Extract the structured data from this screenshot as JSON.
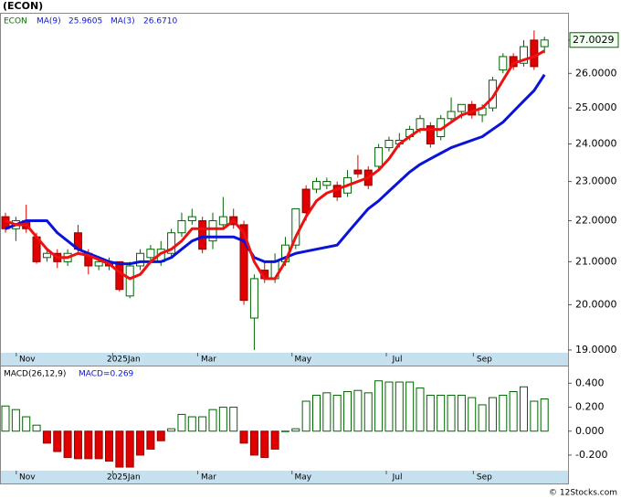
{
  "chart_data": [
    {
      "type": "candlestick",
      "title": "(ECON)",
      "symbol": "ECON",
      "log_scale": true,
      "categories": [
        null,
        null,
        null,
        null,
        null,
        null,
        null,
        null,
        null,
        null,
        null,
        null,
        null,
        null,
        null,
        null,
        null,
        null,
        null,
        null,
        null,
        null,
        null,
        null,
        null,
        null,
        null,
        null,
        null,
        null,
        null,
        null,
        null,
        null,
        null,
        null,
        null,
        null,
        null,
        null,
        null,
        null,
        null,
        null,
        null,
        null,
        null,
        null,
        null,
        null,
        null,
        null,
        null
      ],
      "open": [
        22.1,
        21.8,
        22.0,
        21.6,
        21.1,
        21.2,
        21.0,
        21.7,
        21.2,
        20.9,
        21.0,
        21.0,
        20.2,
        20.9,
        21.1,
        21.0,
        21.2,
        21.7,
        22.0,
        22.0,
        21.5,
        21.9,
        22.1,
        21.9,
        19.7,
        20.8,
        20.6,
        21.0,
        21.4,
        22.8,
        22.8,
        22.9,
        22.9,
        22.7,
        23.3,
        23.3,
        23.4,
        23.9,
        24.0,
        24.2,
        24.4,
        24.5,
        24.2,
        24.7,
        24.9,
        25.1,
        24.8,
        25.0,
        26.1,
        26.5,
        26.3,
        27.0,
        26.8
      ],
      "high": [
        22.2,
        22.1,
        22.4,
        21.7,
        21.3,
        21.3,
        21.3,
        21.9,
        21.3,
        21.1,
        21.1,
        21.0,
        21.0,
        21.3,
        21.4,
        21.5,
        21.8,
        22.2,
        22.3,
        22.1,
        22.2,
        22.6,
        22.3,
        22.0,
        20.7,
        21.0,
        21.2,
        21.6,
        22.3,
        22.9,
        23.1,
        23.1,
        23.0,
        23.3,
        23.7,
        23.4,
        24.0,
        24.2,
        24.3,
        24.5,
        24.8,
        24.6,
        24.8,
        25.3,
        25.1,
        25.2,
        25.1,
        25.9,
        26.6,
        26.6,
        27.0,
        27.3,
        27.1
      ],
      "low": [
        21.7,
        21.5,
        21.7,
        20.95,
        21.0,
        20.85,
        20.9,
        21.2,
        20.7,
        20.8,
        20.8,
        20.3,
        20.15,
        20.8,
        21.0,
        20.9,
        21.1,
        21.6,
        21.9,
        21.2,
        21.3,
        21.8,
        21.8,
        20.0,
        19.0,
        20.5,
        20.5,
        20.9,
        21.3,
        22.0,
        22.7,
        22.8,
        22.5,
        22.6,
        23.1,
        22.8,
        23.3,
        23.8,
        23.9,
        24.1,
        24.3,
        23.9,
        24.1,
        24.6,
        24.7,
        24.7,
        24.6,
        24.9,
        26.0,
        26.1,
        26.2,
        26.1,
        26.6
      ],
      "close": [
        21.8,
        22.0,
        21.8,
        21.0,
        21.2,
        21.0,
        21.2,
        21.3,
        20.9,
        21.0,
        20.9,
        20.35,
        20.9,
        21.2,
        21.3,
        21.3,
        21.7,
        22.0,
        22.1,
        21.3,
        22.0,
        22.1,
        21.9,
        20.1,
        20.6,
        20.6,
        21.0,
        21.4,
        22.3,
        22.2,
        23.0,
        23.0,
        22.6,
        23.1,
        23.2,
        22.9,
        23.9,
        24.1,
        24.1,
        24.4,
        24.7,
        24.0,
        24.7,
        24.9,
        25.1,
        24.8,
        25.0,
        25.8,
        26.5,
        26.2,
        26.8,
        26.2,
        27.0029
      ],
      "up_color": "#006400",
      "down_color": "#e00000",
      "series": [
        {
          "name": "MA(9)",
          "legend_value": "25.9605",
          "color": "#0a14d8",
          "values": [
            21.8,
            21.9,
            22.0,
            22.0,
            22.0,
            21.7,
            21.5,
            21.3,
            21.2,
            21.1,
            21.0,
            20.95,
            20.95,
            21.0,
            21.0,
            21.0,
            21.1,
            21.3,
            21.5,
            21.6,
            21.6,
            21.6,
            21.6,
            21.5,
            21.1,
            21.0,
            21.0,
            21.1,
            21.2,
            21.25,
            21.3,
            21.35,
            21.4,
            21.7,
            22.0,
            22.3,
            22.5,
            22.75,
            23.0,
            23.25,
            23.45,
            23.6,
            23.75,
            23.9,
            24.0,
            24.1,
            24.2,
            24.4,
            24.6,
            24.9,
            25.2,
            25.5,
            25.9605
          ]
        },
        {
          "name": "MA(3)",
          "legend_value": "26.6710",
          "color": "#ee1111",
          "values": [
            22.0,
            21.9,
            21.9,
            21.6,
            21.3,
            21.1,
            21.1,
            21.2,
            21.15,
            21.05,
            20.95,
            20.75,
            20.6,
            20.7,
            21.0,
            21.2,
            21.3,
            21.5,
            21.8,
            21.8,
            21.8,
            21.8,
            22.0,
            21.7,
            21.0,
            20.6,
            20.6,
            21.0,
            21.6,
            22.1,
            22.5,
            22.7,
            22.8,
            22.9,
            23.0,
            23.1,
            23.3,
            23.6,
            24.0,
            24.2,
            24.4,
            24.4,
            24.4,
            24.6,
            24.8,
            24.9,
            25.0,
            25.3,
            25.8,
            26.3,
            26.4,
            26.5,
            26.671
          ]
        }
      ],
      "ylim": [
        18.94,
        27.82
      ],
      "yticks": [
        {
          "value": 19,
          "label": "19.0000"
        },
        {
          "value": 20,
          "label": "20.0000"
        },
        {
          "value": 21,
          "label": "21.0000"
        },
        {
          "value": 22,
          "label": "22.0000"
        },
        {
          "value": 23,
          "label": "23.0000"
        },
        {
          "value": 24,
          "label": "24.0000"
        },
        {
          "value": 25,
          "label": "25.0000"
        },
        {
          "value": 26,
          "label": "26.0000"
        },
        {
          "value": 27,
          "label": "27.0000"
        }
      ],
      "xticks": [
        {
          "value": 2.1,
          "label": "Nov"
        },
        {
          "value": 11.4,
          "label": "2025Jan"
        },
        {
          "value": 19.6,
          "label": "Mar"
        },
        {
          "value": 28.7,
          "label": "May"
        },
        {
          "value": 37.8,
          "label": "Jul"
        },
        {
          "value": 46.2,
          "label": "Sep"
        }
      ]
    },
    {
      "type": "bar",
      "title": "MACD(26,12,9)",
      "legend": "MACD=0.269",
      "values": [
        0.21,
        0.18,
        0.12,
        0.05,
        -0.1,
        -0.17,
        -0.22,
        -0.23,
        -0.23,
        -0.23,
        -0.25,
        -0.3,
        -0.3,
        -0.2,
        -0.15,
        -0.08,
        0.02,
        0.14,
        0.12,
        0.12,
        0.18,
        0.2,
        0.2,
        -0.1,
        -0.2,
        -0.22,
        -0.15,
        0.0,
        0.02,
        0.25,
        0.3,
        0.32,
        0.3,
        0.33,
        0.34,
        0.32,
        0.42,
        0.41,
        0.41,
        0.41,
        0.36,
        0.3,
        0.3,
        0.3,
        0.3,
        0.28,
        0.22,
        0.28,
        0.3,
        0.33,
        0.37,
        0.25,
        0.269
      ],
      "up_color": "#006400",
      "down_color": "#e00000",
      "ylim": [
        -0.33,
        0.54
      ],
      "yticks": [
        {
          "value": -0.2,
          "label": "-0.200"
        },
        {
          "value": 0,
          "label": "0.000"
        },
        {
          "value": 0.2,
          "label": "0.200"
        },
        {
          "value": 0.4,
          "label": "0.400"
        }
      ],
      "xticks": [
        {
          "value": 2.1,
          "label": "Nov"
        },
        {
          "value": 11.4,
          "label": "2025Jan"
        },
        {
          "value": 19.6,
          "label": "Mar"
        },
        {
          "value": 28.7,
          "label": "May"
        },
        {
          "value": 37.8,
          "label": "Jul"
        },
        {
          "value": 46.2,
          "label": "Sep"
        }
      ]
    }
  ],
  "footer": "© 12Stocks.com"
}
